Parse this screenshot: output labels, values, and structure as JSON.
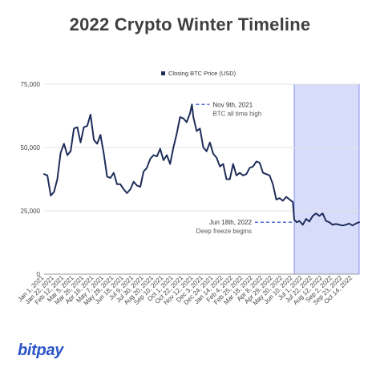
{
  "title": "2022 Crypto Winter Timeline",
  "brand": "bitpay",
  "chart_data": {
    "type": "line",
    "legend_position": "top-center",
    "grid": true,
    "ylim": [
      0,
      75000
    ],
    "y_ticks": [
      "75,000",
      "50,000",
      "25,000",
      "0"
    ],
    "x_tick_labels": [
      "Jan 1, 2021",
      "Jan 22, 2021",
      "Feb 12, 2021",
      "Mar 5, 2021",
      "Mar 26, 2021",
      "Apr 16, 2021",
      "May 7, 2021",
      "May 28, 2021",
      "Jun 18, 2021",
      "Jul 9, 2021",
      "Jul 30, 2021",
      "Aug 20, 2021",
      "Sep 10, 2021",
      "Oct 1, 2021",
      "Oct 22, 2021",
      "Nov 12, 2021",
      "Dec 3, 2021",
      "Dec 24, 2021",
      "Jan 14, 2022",
      "Feb 4, 2022",
      "Feb 25, 2022",
      "Mar 18, 2022",
      "Apr 8, 2022",
      "Apr 29, 2022",
      "May 20, 2022",
      "Jun 10, 2022",
      "Jul 1, 2022",
      "Jul 22, 2022",
      "Aug 12, 2022",
      "Sep 2, 2022",
      "Sep 23, 2022",
      "Oct 14, 2022"
    ],
    "series": [
      {
        "name": "Closing BTC Price (USD)",
        "color": "#1f2d5a",
        "x": [
          "2021-01-01",
          "2021-01-08",
          "2021-01-15",
          "2021-01-22",
          "2021-01-29",
          "2021-02-05",
          "2021-02-12",
          "2021-02-19",
          "2021-02-26",
          "2021-03-05",
          "2021-03-12",
          "2021-03-19",
          "2021-03-26",
          "2021-04-02",
          "2021-04-09",
          "2021-04-16",
          "2021-04-23",
          "2021-04-30",
          "2021-05-07",
          "2021-05-14",
          "2021-05-21",
          "2021-05-28",
          "2021-06-04",
          "2021-06-11",
          "2021-06-18",
          "2021-06-25",
          "2021-07-02",
          "2021-07-09",
          "2021-07-16",
          "2021-07-23",
          "2021-07-30",
          "2021-08-06",
          "2021-08-13",
          "2021-08-20",
          "2021-08-27",
          "2021-09-03",
          "2021-09-10",
          "2021-09-17",
          "2021-09-24",
          "2021-10-01",
          "2021-10-08",
          "2021-10-15",
          "2021-10-22",
          "2021-10-29",
          "2021-11-05",
          "2021-11-09",
          "2021-11-12",
          "2021-11-19",
          "2021-11-26",
          "2021-12-03",
          "2021-12-10",
          "2021-12-17",
          "2021-12-24",
          "2021-12-31",
          "2022-01-07",
          "2022-01-14",
          "2022-01-21",
          "2022-01-28",
          "2022-02-04",
          "2022-02-11",
          "2022-02-18",
          "2022-02-25",
          "2022-03-04",
          "2022-03-11",
          "2022-03-18",
          "2022-03-25",
          "2022-04-01",
          "2022-04-08",
          "2022-04-15",
          "2022-04-22",
          "2022-04-29",
          "2022-05-06",
          "2022-05-13",
          "2022-05-20",
          "2022-05-27",
          "2022-06-03",
          "2022-06-10",
          "2022-06-13",
          "2022-06-18",
          "2022-06-24",
          "2022-07-01",
          "2022-07-08",
          "2022-07-15",
          "2022-07-22",
          "2022-07-29",
          "2022-08-05",
          "2022-08-12",
          "2022-08-19",
          "2022-08-26",
          "2022-09-02",
          "2022-09-09",
          "2022-09-16",
          "2022-09-23",
          "2022-09-30",
          "2022-10-07",
          "2022-10-14",
          "2022-10-21",
          "2022-10-28"
        ],
        "values": [
          39500,
          39000,
          31000,
          32500,
          37500,
          48000,
          51500,
          47000,
          48500,
          57500,
          58000,
          52000,
          58000,
          58500,
          63000,
          53000,
          51500,
          55000,
          47500,
          38500,
          38000,
          40000,
          35500,
          35500,
          33500,
          32000,
          33500,
          36500,
          35000,
          34500,
          40500,
          42000,
          45500,
          47000,
          46500,
          49500,
          45000,
          47000,
          43500,
          50000,
          55500,
          62000,
          61500,
          60000,
          63500,
          67000,
          62000,
          56500,
          57500,
          50000,
          48500,
          52000,
          47500,
          46000,
          42500,
          43500,
          37500,
          37500,
          43500,
          39000,
          40000,
          39000,
          39500,
          42000,
          42500,
          44500,
          44000,
          40000,
          39500,
          39000,
          35500,
          29500,
          30000,
          29000,
          30500,
          29500,
          28500,
          21500,
          20500,
          21000,
          19500,
          21800,
          20800,
          23000,
          24000,
          23000,
          24000,
          21000,
          20500,
          19500,
          19800,
          19500,
          19200,
          19500,
          20000,
          19200,
          20000,
          20500
        ]
      }
    ],
    "highlight_start": "2022-06-13",
    "annotations": [
      {
        "title": "Nov 9th, 2021",
        "text": "BTC all time high",
        "x": "2021-11-09",
        "y": 67000
      },
      {
        "title": "Jun 18th, 2022",
        "text": "Deep freeze begins",
        "x": "2022-06-18",
        "y": 20500
      }
    ]
  }
}
